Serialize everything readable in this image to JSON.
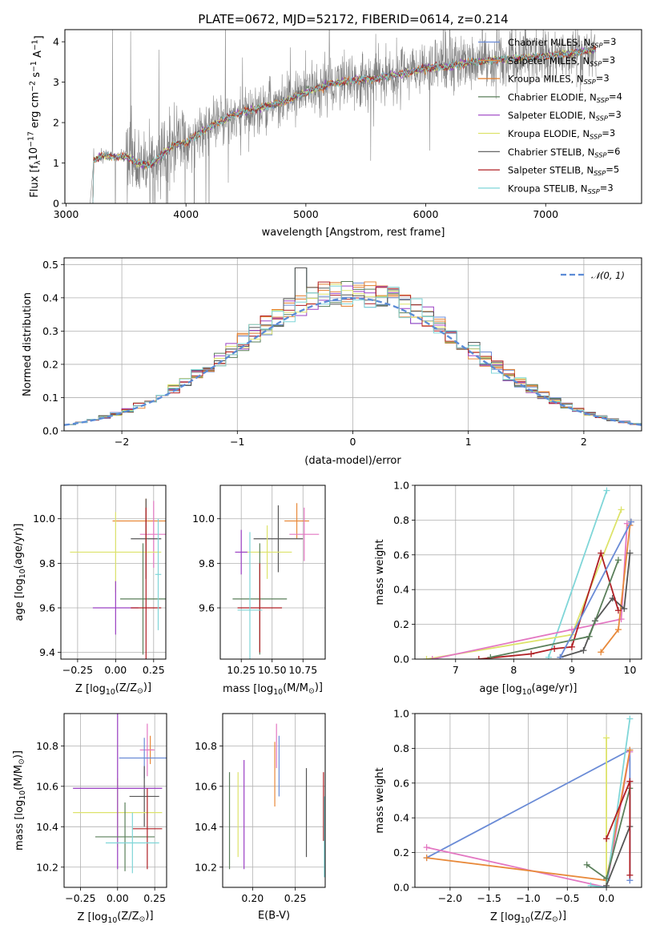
{
  "chart_data": [
    {
      "type": "line",
      "title": "PLATE=0672, MJD=52172, FIBERID=0614, z=0.214",
      "xlabel": "wavelength [Angstrom, rest frame]",
      "ylabel_parts": [
        "Flux [f",
        "λ",
        "10",
        "−17",
        " erg cm",
        "−2",
        " s",
        "−1",
        " A",
        "−1",
        "]"
      ],
      "xlim": [
        2990,
        7800
      ],
      "ylim": [
        0,
        4.3
      ],
      "xticks": [
        3000,
        4000,
        5000,
        6000,
        7000
      ],
      "yticks": [
        0,
        1,
        2,
        3,
        4
      ],
      "legend_location": "upper right",
      "observed_color": "#808080",
      "anchors": {
        "x": [
          3200,
          3230,
          3300,
          3400,
          3500,
          3600,
          3700,
          3800,
          3900,
          4000,
          4100,
          4200,
          4400,
          4600,
          4800,
          5000,
          5200,
          5400,
          5600,
          5800,
          6000,
          6200,
          6400,
          6600,
          6800,
          7000,
          7200,
          7400
        ],
        "y": [
          0,
          1.05,
          1.2,
          1.15,
          1.15,
          1.0,
          0.95,
          1.2,
          1.45,
          1.5,
          1.7,
          1.9,
          2.2,
          2.35,
          2.5,
          2.75,
          2.95,
          3.05,
          3.1,
          3.2,
          3.35,
          3.4,
          3.5,
          3.55,
          3.6,
          3.65,
          3.7,
          3.8
        ]
      },
      "series": [
        {
          "name": "Chabrier MILES",
          "nssp": "3",
          "color": "#6a8bd6"
        },
        {
          "name": "Salpeter MILES",
          "nssp": "3",
          "color": "#e8893a"
        },
        {
          "name": "Kroupa MILES",
          "nssp": "3",
          "color": "#e07b2a"
        },
        {
          "name": "Chabrier ELODIE",
          "nssp": "4",
          "color": "#5a7f5a"
        },
        {
          "name": "Salpeter ELODIE",
          "nssp": "3",
          "color": "#9b40c4"
        },
        {
          "name": "Kroupa ELODIE",
          "nssp": "3",
          "color": "#dde36a"
        },
        {
          "name": "Chabrier STELIB",
          "nssp": "6",
          "color": "#555555"
        },
        {
          "name": "Salpeter STELIB",
          "nssp": "5",
          "color": "#b01f24"
        },
        {
          "name": "Kroupa STELIB",
          "nssp": "3",
          "color": "#7fd6d8"
        }
      ]
    },
    {
      "type": "histogram",
      "xlabel": "(data-model)/error",
      "ylabel": "Normed distribution",
      "xlim": [
        -2.5,
        2.5
      ],
      "ylim": [
        0,
        0.52
      ],
      "xticks": [
        -2,
        -1,
        0,
        1,
        2
      ],
      "yticks": [
        0.0,
        0.1,
        0.2,
        0.3,
        0.4,
        0.5
      ],
      "bin_edges_range": [
        -2.5,
        2.5
      ],
      "bin_count": 50,
      "reference_label": "𝒩(0, 1)",
      "reference_color": "#5b8bd6",
      "reference_values": {
        "mean": 0,
        "sigma": 1
      }
    },
    {
      "type": "errorbar",
      "xlabel_parts": [
        "Z [log",
        "10",
        "(Z/Z",
        "⊙",
        ")]"
      ],
      "ylabel_parts": [
        "age  [log",
        "10",
        "(age/yr)]"
      ],
      "xlim": [
        -0.36,
        0.33
      ],
      "ylim": [
        9.37,
        10.15
      ],
      "xticks": [
        -0.25,
        0.0,
        0.25
      ],
      "yticks": [
        9.4,
        9.6,
        9.8,
        10.0
      ],
      "points": [
        {
          "x": 0.2,
          "xerr": 0.22,
          "y": 9.99,
          "yerr": 0.1,
          "color": "#e8893a"
        },
        {
          "x": 0.25,
          "xerr": 0.09,
          "y": 9.93,
          "yerr": 0.15,
          "color": "#e377c2"
        },
        {
          "x": 0.2,
          "xerr": 0.1,
          "y": 9.91,
          "yerr": 0.18,
          "color": "#555555"
        },
        {
          "x": 0.0,
          "xerr": 0.3,
          "y": 9.85,
          "yerr": 0.18,
          "color": "#dde36a"
        },
        {
          "x": 0.18,
          "xerr": 0.15,
          "y": 9.64,
          "yerr": 0.25,
          "color": "#5a7f5a"
        },
        {
          "x": 0.0,
          "xerr": 0.15,
          "y": 9.6,
          "yerr": 0.12,
          "color": "#9b40c4"
        },
        {
          "x": 0.2,
          "xerr": 0.1,
          "y": 9.6,
          "yerr": 0.45,
          "color": "#b01f24"
        },
        {
          "x": 0.28,
          "xerr": 0.02,
          "y": 9.75,
          "yerr": 0.25,
          "color": "#7fd6d8"
        }
      ]
    },
    {
      "type": "errorbar",
      "xlabel_parts": [
        "mass [log",
        "10",
        "(M/M",
        "⊙",
        ")]"
      ],
      "xlim": [
        10.08,
        10.93
      ],
      "ylim": [
        9.37,
        10.15
      ],
      "xticks": [
        10.25,
        10.5,
        10.75
      ],
      "yticks": [
        9.6,
        9.8,
        10.0
      ],
      "points": [
        {
          "x": 10.7,
          "xerr": 0.1,
          "y": 9.99,
          "yerr": 0.08,
          "color": "#e8893a"
        },
        {
          "x": 10.76,
          "xerr": 0.12,
          "y": 9.93,
          "yerr": 0.12,
          "color": "#e377c2"
        },
        {
          "x": 10.55,
          "xerr": 0.2,
          "y": 9.91,
          "yerr": 0.15,
          "color": "#555555"
        },
        {
          "x": 10.46,
          "xerr": 0.2,
          "y": 9.85,
          "yerr": 0.12,
          "color": "#dde36a"
        },
        {
          "x": 10.4,
          "xerr": 0.22,
          "y": 9.64,
          "yerr": 0.25,
          "color": "#5a7f5a"
        },
        {
          "x": 10.25,
          "xerr": 0.05,
          "y": 9.85,
          "yerr": 0.1,
          "color": "#9b40c4"
        },
        {
          "x": 10.4,
          "xerr": 0.18,
          "y": 9.6,
          "yerr": 0.2,
          "color": "#b01f24"
        },
        {
          "x": 10.32,
          "xerr": 0.1,
          "y": 9.59,
          "yerr": 0.35,
          "color": "#7fd6d8"
        }
      ]
    },
    {
      "type": "line",
      "xlabel_parts": [
        "age  [log",
        "10",
        "(age/yr)]"
      ],
      "ylabel": "mass weight",
      "xlim": [
        6.3,
        10.2
      ],
      "ylim": [
        0,
        1.0
      ],
      "xticks": [
        7,
        8,
        9,
        10
      ],
      "yticks": [
        0.0,
        0.2,
        0.4,
        0.6,
        0.8,
        1.0
      ],
      "series": [
        {
          "color": "#7fd6d8",
          "x": [
            8.6,
            9.6
          ],
          "y": [
            0.01,
            0.97
          ]
        },
        {
          "color": "#dde36a",
          "x": [
            6.5,
            9.0,
            9.85
          ],
          "y": [
            0.0,
            0.14,
            0.86
          ]
        },
        {
          "color": "#e377c2",
          "x": [
            6.6,
            9.0,
            9.85,
            9.95
          ],
          "y": [
            0.0,
            0.17,
            0.23,
            0.78
          ]
        },
        {
          "color": "#e8893a",
          "x": [
            9.5,
            9.8,
            10.0,
            10.02
          ],
          "y": [
            0.04,
            0.17,
            0.77,
            0.79
          ]
        },
        {
          "color": "#555555",
          "x": [
            8.8,
            9.2,
            9.4,
            9.7,
            9.9,
            10.0
          ],
          "y": [
            0.01,
            0.05,
            0.22,
            0.35,
            0.29,
            0.61
          ]
        },
        {
          "color": "#b01f24",
          "x": [
            7.4,
            8.3,
            8.7,
            9.0,
            9.5,
            9.8
          ],
          "y": [
            0.0,
            0.03,
            0.06,
            0.07,
            0.61,
            0.28
          ]
        },
        {
          "color": "#5a7f5a",
          "x": [
            7.6,
            9.3,
            9.8
          ],
          "y": [
            0.01,
            0.13,
            0.57
          ]
        },
        {
          "color": "#6a8bd6",
          "x": [
            8.8,
            10.02
          ],
          "y": [
            0.01,
            0.79
          ]
        }
      ]
    },
    {
      "type": "errorbar",
      "xlabel_parts": [
        "Z [log",
        "10",
        "(Z/Z",
        "⊙",
        ")]"
      ],
      "ylabel_parts": [
        "mass [log",
        "10",
        "(M/M",
        "⊙",
        ")]"
      ],
      "xlim": [
        -0.36,
        0.33
      ],
      "ylim": [
        10.1,
        10.96
      ],
      "xticks": [
        -0.25,
        0.0,
        0.25
      ],
      "yticks": [
        10.2,
        10.4,
        10.6,
        10.8
      ],
      "points": [
        {
          "x": 0.22,
          "xerr": 0.02,
          "y": 10.78,
          "yerr": 0.07,
          "color": "#e8893a"
        },
        {
          "x": 0.2,
          "xerr": 0.05,
          "y": 10.78,
          "yerr": 0.13,
          "color": "#e377c2"
        },
        {
          "x": 0.18,
          "xerr": 0.17,
          "y": 10.74,
          "yerr": 0.1,
          "color": "#6a8bd6"
        },
        {
          "x": 0.18,
          "xerr": 0.1,
          "y": 10.55,
          "yerr": 0.15,
          "color": "#555555"
        },
        {
          "x": 0.0,
          "xerr": 0.3,
          "y": 10.47,
          "yerr": 0.17,
          "color": "#dde36a"
        },
        {
          "x": 0.0,
          "xerr": 0.3,
          "y": 10.59,
          "yerr": 0.4,
          "color": "#9b40c4"
        },
        {
          "x": 0.05,
          "xerr": 0.2,
          "y": 10.35,
          "yerr": 0.17,
          "color": "#5a7f5a"
        },
        {
          "x": 0.2,
          "xerr": 0.1,
          "y": 10.39,
          "yerr": 0.2,
          "color": "#b01f24"
        },
        {
          "x": 0.1,
          "xerr": 0.18,
          "y": 10.32,
          "yerr": 0.15,
          "color": "#7fd6d8"
        }
      ]
    },
    {
      "type": "errorbar",
      "xlabel": "E(B-V)",
      "xlim": [
        0.165,
        0.285
      ],
      "ylim": [
        10.1,
        10.96
      ],
      "xticks": [
        0.2,
        0.25
      ],
      "yticks": [
        10.2,
        10.4,
        10.6,
        10.8
      ],
      "points": [
        {
          "x": 0.173,
          "y": 10.43,
          "yerr": 0.24,
          "color": "#5a7f5a"
        },
        {
          "x": 0.183,
          "y": 10.46,
          "yerr": 0.21,
          "color": "#dde36a"
        },
        {
          "x": 0.19,
          "y": 10.46,
          "yerr": 0.27,
          "color": "#9b40c4"
        },
        {
          "x": 0.226,
          "y": 10.66,
          "yerr": 0.16,
          "color": "#e8893a"
        },
        {
          "x": 0.228,
          "y": 10.8,
          "yerr": 0.11,
          "color": "#e377c2"
        },
        {
          "x": 0.231,
          "y": 10.7,
          "yerr": 0.15,
          "color": "#6a8bd6"
        },
        {
          "x": 0.263,
          "y": 10.47,
          "yerr": 0.22,
          "color": "#555555"
        },
        {
          "x": 0.283,
          "y": 10.5,
          "yerr": 0.17,
          "color": "#b01f24"
        },
        {
          "x": 0.284,
          "y": 10.35,
          "yerr": 0.2,
          "color": "#7fd6d8"
        }
      ]
    },
    {
      "type": "line",
      "xlabel_parts": [
        "Z [log",
        "10",
        "(Z/Z",
        "⊙",
        ")]"
      ],
      "ylabel": "mass weight",
      "xlim": [
        -2.45,
        0.45
      ],
      "ylim": [
        0,
        1.0
      ],
      "xticks": [
        -2.0,
        -1.5,
        -1.0,
        -0.5,
        0.0
      ],
      "yticks": [
        0.0,
        0.2,
        0.4,
        0.6,
        0.8,
        1.0
      ],
      "series": [
        {
          "color": "#6a8bd6",
          "x": [
            -2.3,
            0.3,
            0.3
          ],
          "y": [
            0.17,
            0.79,
            0.04
          ]
        },
        {
          "color": "#e377c2",
          "x": [
            -2.3,
            0.0,
            0.3
          ],
          "y": [
            0.23,
            0.0,
            0.78
          ]
        },
        {
          "color": "#e8893a",
          "x": [
            -2.3,
            0.0,
            0.3
          ],
          "y": [
            0.17,
            0.04,
            0.79
          ]
        },
        {
          "color": "#dde36a",
          "x": [
            0.0,
            0.0
          ],
          "y": [
            0.0,
            0.86
          ]
        },
        {
          "color": "#7fd6d8",
          "x": [
            -0.2,
            0.0,
            0.3
          ],
          "y": [
            0.01,
            0.0,
            0.97
          ]
        },
        {
          "color": "#5a7f5a",
          "x": [
            -0.25,
            0.0,
            0.3
          ],
          "y": [
            0.13,
            0.05,
            0.57
          ]
        },
        {
          "color": "#555555",
          "x": [
            0.0,
            0.3,
            0.3
          ],
          "y": [
            0.01,
            0.35,
            0.61
          ]
        },
        {
          "color": "#b01f24",
          "x": [
            0.0,
            0.3,
            0.3
          ],
          "y": [
            0.28,
            0.61,
            0.07
          ]
        }
      ]
    }
  ]
}
